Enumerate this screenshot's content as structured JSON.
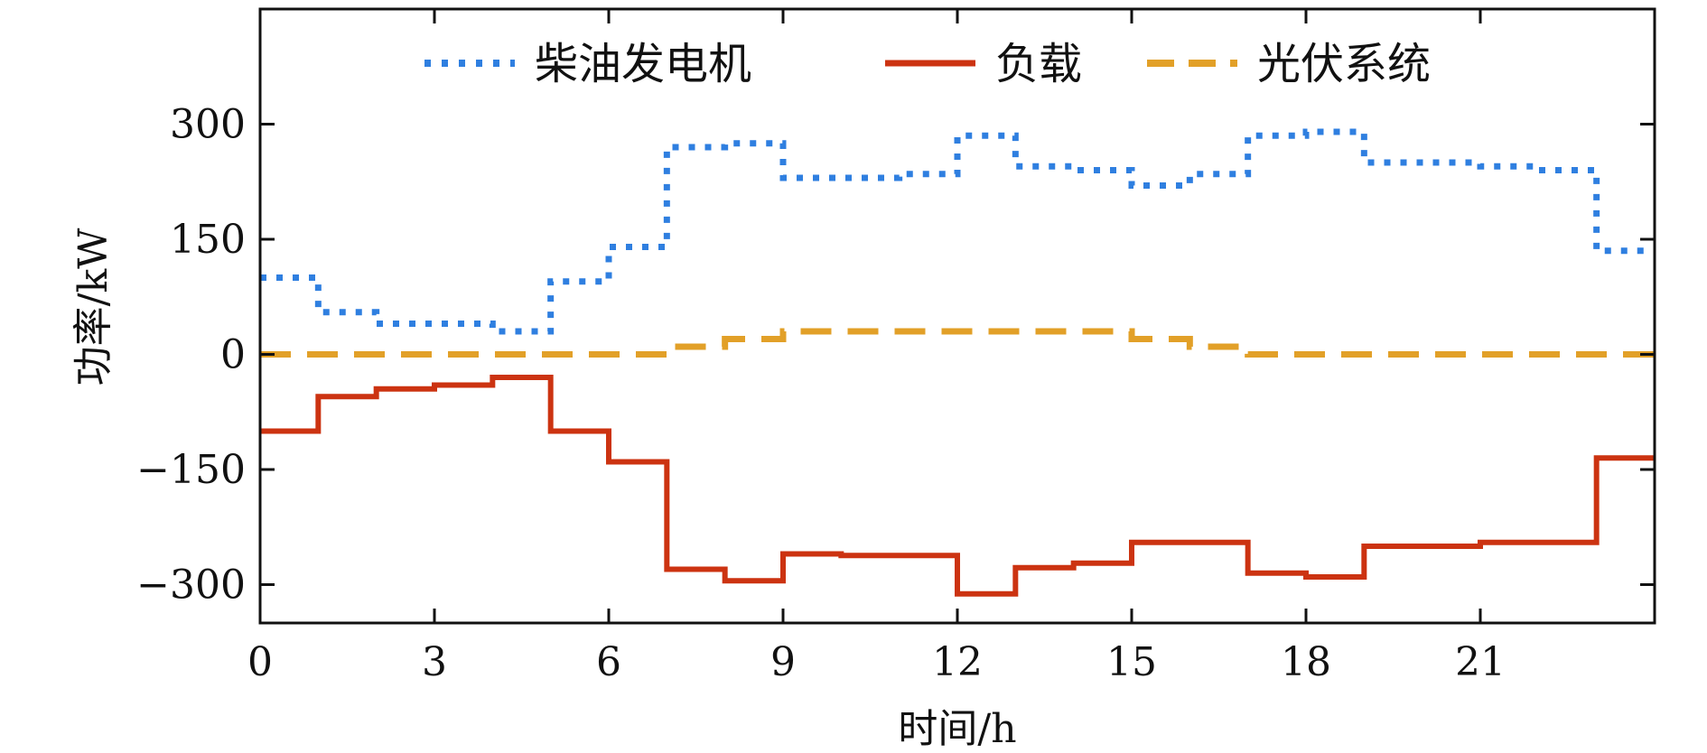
{
  "chart_data": {
    "type": "line",
    "step": true,
    "xlabel": "时间/h",
    "ylabel": "功率/kW",
    "xlim": [
      0,
      24
    ],
    "ylim": [
      -350,
      450
    ],
    "xticks": [
      0,
      3,
      6,
      9,
      12,
      15,
      18,
      21
    ],
    "yticks": [
      -300,
      -150,
      0,
      150,
      300
    ],
    "ytick_labels": [
      "−300",
      "−150",
      "0",
      "150",
      "300"
    ],
    "grid": false,
    "legend": {
      "placement": "top-center",
      "orientation": "horizontal"
    },
    "series": [
      {
        "name": "柴油发电机",
        "color": "#2f7fe0",
        "style": "dotted",
        "x": [
          0,
          1,
          2,
          3,
          4,
          5,
          6,
          7,
          8,
          9,
          10,
          11,
          12,
          13,
          14,
          15,
          16,
          17,
          18,
          19,
          20,
          21,
          22,
          23
        ],
        "values": [
          100,
          55,
          40,
          40,
          30,
          95,
          140,
          270,
          275,
          230,
          230,
          235,
          285,
          245,
          240,
          220,
          235,
          285,
          290,
          250,
          250,
          245,
          240,
          135
        ]
      },
      {
        "name": "负载",
        "color": "#cc3311",
        "style": "solid",
        "x": [
          0,
          1,
          2,
          3,
          4,
          5,
          6,
          7,
          8,
          9,
          10,
          11,
          12,
          13,
          14,
          15,
          16,
          17,
          18,
          19,
          20,
          21,
          22,
          23
        ],
        "values": [
          -100,
          -55,
          -45,
          -40,
          -30,
          -100,
          -140,
          -280,
          -295,
          -260,
          -262,
          -262,
          -312,
          -278,
          -272,
          -245,
          -245,
          -285,
          -290,
          -250,
          -250,
          -245,
          -245,
          -135
        ]
      },
      {
        "name": "光伏系统",
        "color": "#e2a028",
        "style": "dashed",
        "x": [
          0,
          1,
          2,
          3,
          4,
          5,
          6,
          7,
          8,
          9,
          10,
          11,
          12,
          13,
          14,
          15,
          16,
          17,
          18,
          19,
          20,
          21,
          22,
          23
        ],
        "values": [
          0,
          0,
          0,
          0,
          0,
          0,
          0,
          10,
          20,
          30,
          30,
          30,
          30,
          30,
          30,
          20,
          10,
          0,
          0,
          0,
          0,
          0,
          0,
          0
        ]
      }
    ]
  }
}
